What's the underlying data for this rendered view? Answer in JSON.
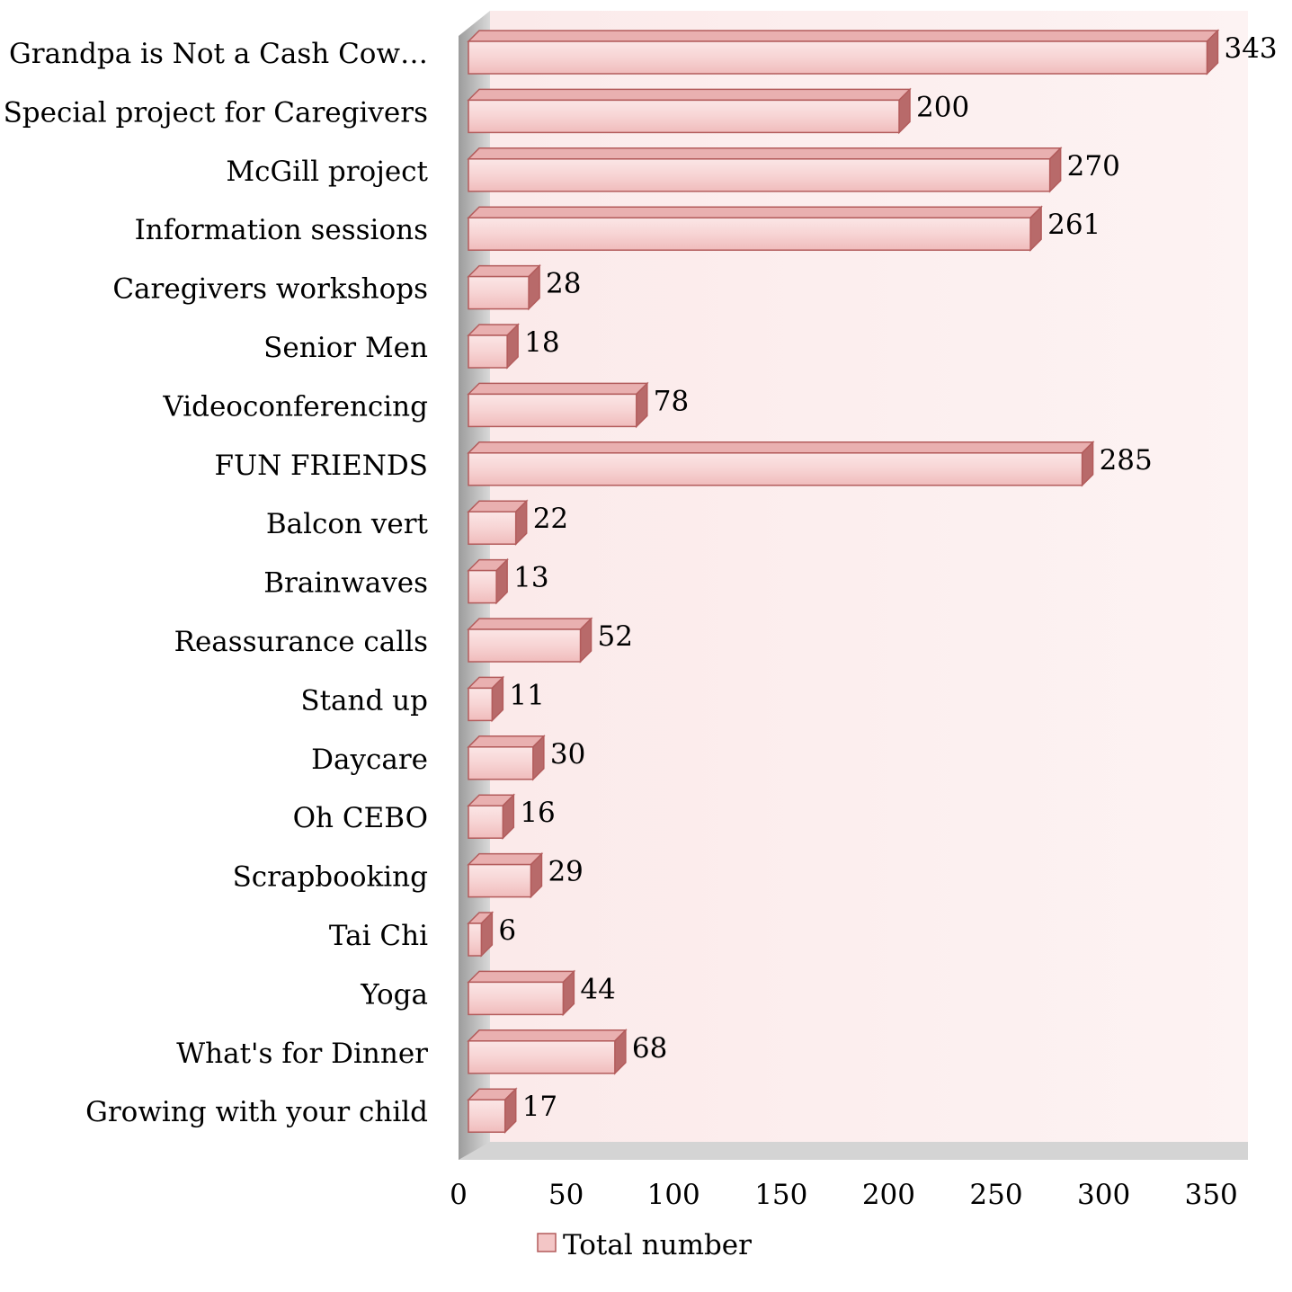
{
  "chart_data": {
    "type": "bar",
    "orientation": "horizontal",
    "categories": [
      "Grandpa is Not a Cash Cow…",
      "Special project for Caregivers",
      "McGill project",
      "Information sessions",
      "Caregivers workshops",
      "Senior Men",
      "Videoconferencing",
      "FUN FRIENDS",
      "Balcon vert",
      "Brainwaves",
      "Reassurance calls",
      "Stand up",
      "Daycare",
      "Oh CEBO",
      "Scrapbooking",
      "Tai Chi",
      "Yoga",
      "What's for Dinner",
      "Growing with your child"
    ],
    "series": [
      {
        "name": "Total number",
        "values": [
          343,
          200,
          270,
          261,
          28,
          18,
          78,
          285,
          22,
          13,
          52,
          11,
          30,
          16,
          29,
          6,
          44,
          68,
          17
        ]
      }
    ],
    "data_labels": [
      "343",
      "200",
      "270",
      "261",
      "28",
      "18",
      "78",
      "285",
      "22",
      "13",
      "52",
      "11",
      "30",
      "16",
      "29",
      "6",
      "44",
      "68",
      "17"
    ],
    "x_ticks": [
      "0",
      "50",
      "100",
      "150",
      "200",
      "250",
      "300",
      "350"
    ],
    "xlim": [
      0,
      350
    ],
    "grid": false,
    "legend": "bottom-center",
    "colors": {
      "bar_fill": "#f3c6c6",
      "bar_fill_light": "#fbe6e6",
      "bar_top": "#e9b0b0",
      "bar_side": "#b86a6a",
      "bar_stroke": "#b35c5c",
      "plot_back": "#fdf0f0",
      "wall_shade": "#c8c8c8"
    }
  }
}
